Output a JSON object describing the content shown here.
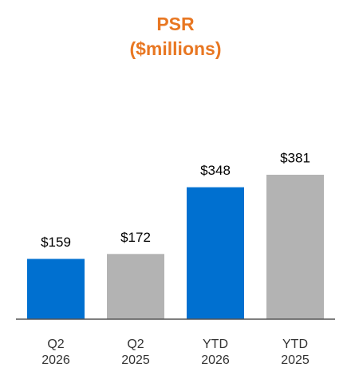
{
  "chart_data": {
    "type": "bar",
    "title": "PSR",
    "subtitle": "($millions)",
    "categories": [
      "Q2 2026",
      "Q2 2025",
      "YTD 2026",
      "YTD 2025"
    ],
    "values": [
      159,
      172,
      348,
      381
    ],
    "value_labels": [
      "$159",
      "$172",
      "$348",
      "$381"
    ],
    "colors": [
      "#0070D0",
      "#B3B3B3",
      "#0070D0",
      "#B3B3B3"
    ]
  }
}
